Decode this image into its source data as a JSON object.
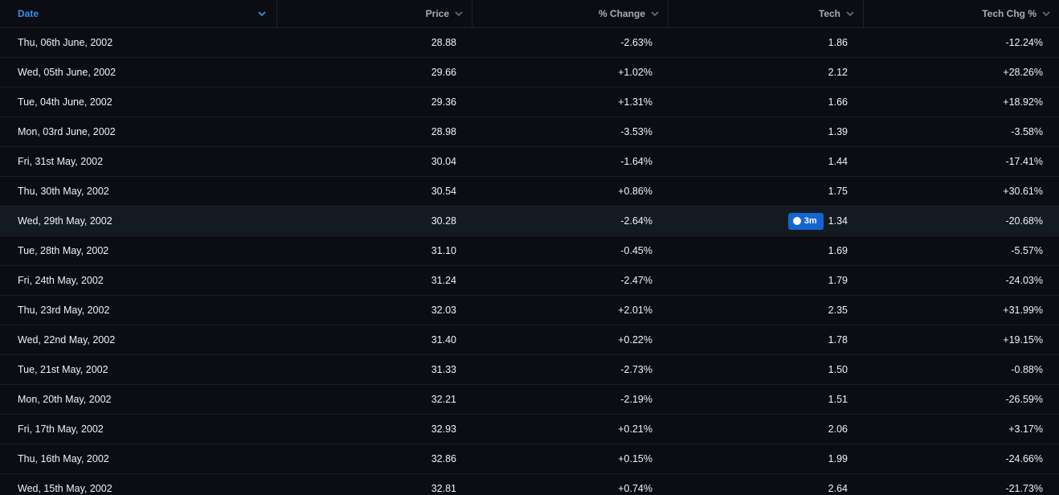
{
  "columns": {
    "date": "Date",
    "price": "Price",
    "change": "% Change",
    "tech": "Tech",
    "tech_chg": "Tech Chg %"
  },
  "badge": {
    "label": "3m",
    "icon": "circle-icon"
  },
  "colors": {
    "accent": "#3d8ef0",
    "positive": "#25c25a",
    "negative": "#ef2b2b",
    "badge": "#1565d0",
    "highlight": "#131a22"
  },
  "rows": [
    {
      "date": "Thu, 06th June, 2002",
      "price": "28.88",
      "change": "-2.63%",
      "tech": "1.86",
      "tech_chg": "-12.24%"
    },
    {
      "date": "Wed, 05th June, 2002",
      "price": "29.66",
      "change": "+1.02%",
      "tech": "2.12",
      "tech_chg": "+28.26%"
    },
    {
      "date": "Tue, 04th June, 2002",
      "price": "29.36",
      "change": "+1.31%",
      "tech": "1.66",
      "tech_chg": "+18.92%"
    },
    {
      "date": "Mon, 03rd June, 2002",
      "price": "28.98",
      "change": "-3.53%",
      "tech": "1.39",
      "tech_chg": "-3.58%"
    },
    {
      "date": "Fri, 31st May, 2002",
      "price": "30.04",
      "change": "-1.64%",
      "tech": "1.44",
      "tech_chg": "-17.41%"
    },
    {
      "date": "Thu, 30th May, 2002",
      "price": "30.54",
      "change": "+0.86%",
      "tech": "1.75",
      "tech_chg": "+30.61%"
    },
    {
      "date": "Wed, 29th May, 2002",
      "price": "30.28",
      "change": "-2.64%",
      "tech": "1.34",
      "tech_chg": "-20.68%"
    },
    {
      "date": "Tue, 28th May, 2002",
      "price": "31.10",
      "change": "-0.45%",
      "tech": "1.69",
      "tech_chg": "-5.57%"
    },
    {
      "date": "Fri, 24th May, 2002",
      "price": "31.24",
      "change": "-2.47%",
      "tech": "1.79",
      "tech_chg": "-24.03%"
    },
    {
      "date": "Thu, 23rd May, 2002",
      "price": "32.03",
      "change": "+2.01%",
      "tech": "2.35",
      "tech_chg": "+31.99%"
    },
    {
      "date": "Wed, 22nd May, 2002",
      "price": "31.40",
      "change": "+0.22%",
      "tech": "1.78",
      "tech_chg": "+19.15%"
    },
    {
      "date": "Tue, 21st May, 2002",
      "price": "31.33",
      "change": "-2.73%",
      "tech": "1.50",
      "tech_chg": "-0.88%"
    },
    {
      "date": "Mon, 20th May, 2002",
      "price": "32.21",
      "change": "-2.19%",
      "tech": "1.51",
      "tech_chg": "-26.59%"
    },
    {
      "date": "Fri, 17th May, 2002",
      "price": "32.93",
      "change": "+0.21%",
      "tech": "2.06",
      "tech_chg": "+3.17%"
    },
    {
      "date": "Thu, 16th May, 2002",
      "price": "32.86",
      "change": "+0.15%",
      "tech": "1.99",
      "tech_chg": "-24.66%"
    },
    {
      "date": "Wed, 15th May, 2002",
      "price": "32.81",
      "change": "+0.74%",
      "tech": "2.64",
      "tech_chg": "-21.73%"
    }
  ]
}
